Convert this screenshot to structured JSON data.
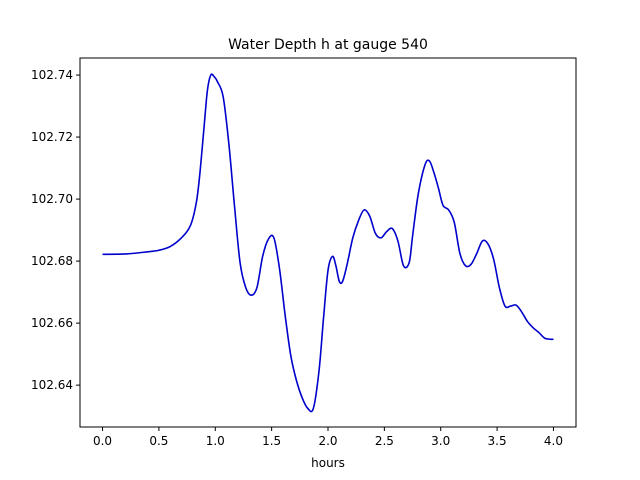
{
  "chart_data": {
    "type": "line",
    "title": "Water Depth h at gauge 540",
    "xlabel": "hours",
    "ylabel": "",
    "xlim": [
      -0.2,
      4.2
    ],
    "ylim": [
      102.6265,
      102.7455
    ],
    "xticks": [
      0.0,
      0.5,
      1.0,
      1.5,
      2.0,
      2.5,
      3.0,
      3.5,
      4.0
    ],
    "xtick_labels": [
      "0.0",
      "0.5",
      "1.0",
      "1.5",
      "2.0",
      "2.5",
      "3.0",
      "3.5",
      "4.0"
    ],
    "yticks": [
      102.64,
      102.66,
      102.68,
      102.7,
      102.72,
      102.74
    ],
    "ytick_labels": [
      "102.64",
      "102.66",
      "102.68",
      "102.70",
      "102.72",
      "102.74"
    ],
    "grid": false,
    "series": [
      {
        "color": "#0000cc",
        "x": [
          0.0,
          0.2,
          0.4,
          0.5,
          0.6,
          0.7,
          0.78,
          0.83,
          0.86,
          0.9,
          0.93,
          0.96,
          0.99,
          1.02,
          1.07,
          1.12,
          1.17,
          1.22,
          1.27,
          1.32,
          1.37,
          1.42,
          1.47,
          1.52,
          1.57,
          1.62,
          1.67,
          1.72,
          1.77,
          1.82,
          1.87,
          1.92,
          1.96,
          2.0,
          2.04,
          2.07,
          2.1,
          2.13,
          2.17,
          2.22,
          2.27,
          2.32,
          2.37,
          2.42,
          2.47,
          2.52,
          2.57,
          2.62,
          2.67,
          2.72,
          2.75,
          2.8,
          2.86,
          2.9,
          2.94,
          2.98,
          3.02,
          3.07,
          3.12,
          3.17,
          3.22,
          3.27,
          3.32,
          3.37,
          3.42,
          3.47,
          3.52,
          3.57,
          3.62,
          3.67,
          3.72,
          3.77,
          3.82,
          3.87,
          3.92,
          3.97,
          4.0
        ],
        "values": [
          102.6822,
          102.6823,
          102.683,
          102.6835,
          102.6847,
          102.6875,
          102.6915,
          102.6985,
          102.707,
          102.723,
          102.735,
          102.74,
          102.7395,
          102.7378,
          102.733,
          102.718,
          102.698,
          102.6795,
          102.6715,
          102.669,
          102.6715,
          102.6815,
          102.687,
          102.6875,
          102.6775,
          102.6625,
          102.6495,
          102.6415,
          102.636,
          102.6325,
          102.6325,
          102.6445,
          102.6615,
          102.677,
          102.6815,
          102.6785,
          102.6735,
          102.6735,
          102.679,
          102.6875,
          102.693,
          102.6965,
          102.6945,
          102.689,
          102.6875,
          102.6895,
          102.6905,
          102.6865,
          102.6785,
          102.6795,
          102.688,
          102.7015,
          102.711,
          102.7123,
          102.7085,
          102.7035,
          102.698,
          102.6965,
          102.6925,
          102.6825,
          102.6785,
          102.679,
          102.6825,
          102.6865,
          102.6855,
          102.6805,
          102.6715,
          102.6655,
          102.6655,
          102.6658,
          102.6635,
          102.6605,
          102.6585,
          102.657,
          102.6552,
          102.6548,
          102.6548
        ]
      }
    ]
  }
}
